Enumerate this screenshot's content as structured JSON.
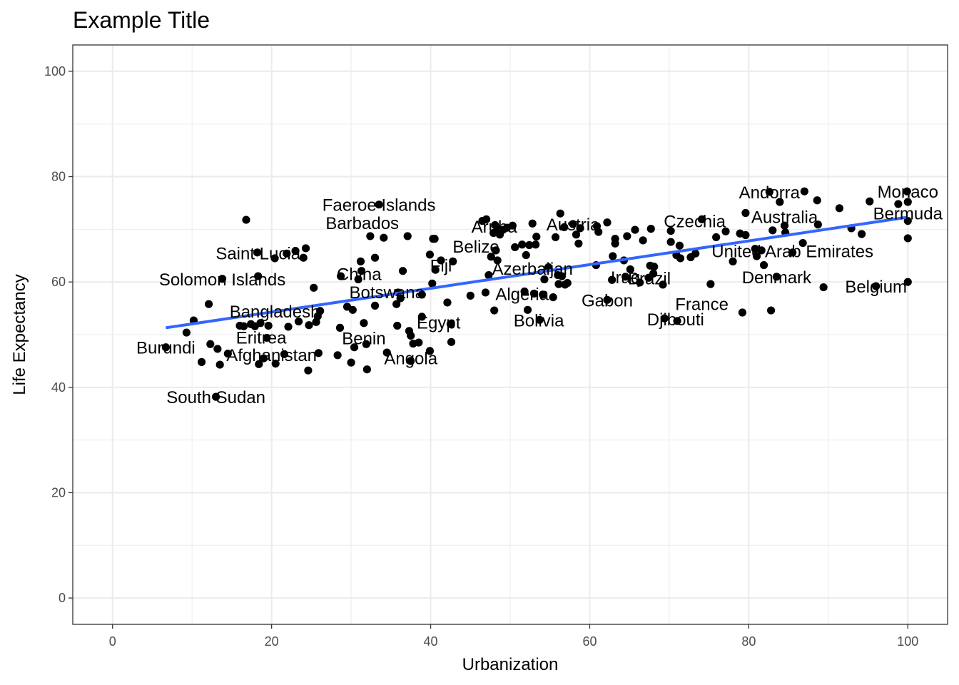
{
  "chart_data": {
    "type": "scatter",
    "title": "Example Title",
    "xlabel": "Urbanization",
    "ylabel": "Life Expectancy",
    "xlim": [
      -5,
      105
    ],
    "ylim": [
      -5,
      105
    ],
    "x_ticks": [
      "0",
      "20",
      "40",
      "60",
      "80",
      "100"
    ],
    "y_ticks": [
      "0",
      "20",
      "40",
      "60",
      "80",
      "100"
    ],
    "grid": true,
    "colors": {
      "points": "#000000",
      "trend": "#3366FF",
      "grid": "#ebebeb",
      "border": "#333333"
    },
    "trend_line": {
      "x": [
        6.7,
        100
      ],
      "y": [
        51.3,
        72.3
      ]
    },
    "labels": [
      {
        "text": "Faeroe Islands",
        "x": 33.5,
        "y": 74.7
      },
      {
        "text": "Barbados",
        "x": 31.4,
        "y": 71.3
      },
      {
        "text": "Aruba",
        "x": 48.0,
        "y": 70.6
      },
      {
        "text": "Austria",
        "x": 57.9,
        "y": 71.0
      },
      {
        "text": "Czechia",
        "x": 73.2,
        "y": 71.6
      },
      {
        "text": "Andorra",
        "x": 82.6,
        "y": 77.1
      },
      {
        "text": "Monaco",
        "x": 100.0,
        "y": 77.2
      },
      {
        "text": "Bermuda",
        "x": 100.0,
        "y": 73.1
      },
      {
        "text": "Australia",
        "x": 84.5,
        "y": 72.4
      },
      {
        "text": "Saint Lucia",
        "x": 18.3,
        "y": 65.5
      },
      {
        "text": "Belize",
        "x": 45.7,
        "y": 66.8
      },
      {
        "text": "United Arab Emirates",
        "x": 85.5,
        "y": 65.9
      },
      {
        "text": "Solomon Islands",
        "x": 13.8,
        "y": 60.6
      },
      {
        "text": "China",
        "x": 31.0,
        "y": 61.6
      },
      {
        "text": "Fiji",
        "x": 41.3,
        "y": 63.2
      },
      {
        "text": "Azerbaijan",
        "x": 52.8,
        "y": 62.6
      },
      {
        "text": "Iraq",
        "x": 64.5,
        "y": 61.0
      },
      {
        "text": "Brazil",
        "x": 67.5,
        "y": 60.8
      },
      {
        "text": "Denmark",
        "x": 83.5,
        "y": 61.0
      },
      {
        "text": "Belgium",
        "x": 96.0,
        "y": 59.2
      },
      {
        "text": "Botswana",
        "x": 34.5,
        "y": 58.1
      },
      {
        "text": "Algeria",
        "x": 51.5,
        "y": 57.8
      },
      {
        "text": "Gabon",
        "x": 62.2,
        "y": 56.6
      },
      {
        "text": "France",
        "x": 74.1,
        "y": 55.9
      },
      {
        "text": "Bangladesh",
        "x": 20.4,
        "y": 54.5
      },
      {
        "text": "Egypt",
        "x": 41.0,
        "y": 52.4
      },
      {
        "text": "Bolivia",
        "x": 53.6,
        "y": 52.8
      },
      {
        "text": "Djibouti",
        "x": 70.8,
        "y": 53.0
      },
      {
        "text": "Eritrea",
        "x": 18.7,
        "y": 49.5
      },
      {
        "text": "Benin",
        "x": 31.6,
        "y": 49.4
      },
      {
        "text": "Burundi",
        "x": 6.7,
        "y": 47.6
      },
      {
        "text": "Afghanistan",
        "x": 20.0,
        "y": 46.2
      },
      {
        "text": "Angola",
        "x": 37.5,
        "y": 45.6
      },
      {
        "text": "South Sudan",
        "x": 13.0,
        "y": 38.2
      }
    ],
    "points": [
      [
        6.7,
        47.6
      ],
      [
        9.3,
        50.4
      ],
      [
        10.2,
        52.7
      ],
      [
        11.2,
        44.8
      ],
      [
        12.1,
        55.8
      ],
      [
        12.3,
        48.2
      ],
      [
        13.0,
        38.2
      ],
      [
        13.2,
        47.3
      ],
      [
        13.5,
        44.3
      ],
      [
        13.8,
        60.6
      ],
      [
        14.5,
        46.4
      ],
      [
        16.0,
        51.7
      ],
      [
        16.5,
        51.6
      ],
      [
        16.8,
        71.8
      ],
      [
        17.4,
        52.0
      ],
      [
        17.9,
        51.6
      ],
      [
        18.2,
        65.6
      ],
      [
        18.3,
        61.1
      ],
      [
        18.4,
        44.4
      ],
      [
        18.6,
        52.2
      ],
      [
        19.0,
        45.5
      ],
      [
        19.4,
        49.4
      ],
      [
        19.6,
        51.7
      ],
      [
        20.4,
        64.5
      ],
      [
        20.5,
        44.5
      ],
      [
        21.6,
        46.3
      ],
      [
        21.9,
        65.4
      ],
      [
        22.1,
        51.5
      ],
      [
        23.0,
        65.9
      ],
      [
        23.4,
        52.5
      ],
      [
        24.0,
        64.6
      ],
      [
        24.3,
        66.4
      ],
      [
        24.7,
        51.8
      ],
      [
        24.6,
        43.2
      ],
      [
        25.3,
        58.9
      ],
      [
        25.6,
        52.4
      ],
      [
        25.8,
        53.5
      ],
      [
        25.9,
        46.5
      ],
      [
        26.1,
        54.5
      ],
      [
        28.3,
        46.1
      ],
      [
        28.7,
        61.1
      ],
      [
        28.6,
        51.3
      ],
      [
        29.5,
        55.3
      ],
      [
        30.0,
        44.7
      ],
      [
        30.4,
        47.6
      ],
      [
        30.2,
        54.7
      ],
      [
        30.9,
        60.5
      ],
      [
        31.3,
        62.1
      ],
      [
        31.2,
        63.9
      ],
      [
        31.6,
        52.2
      ],
      [
        31.9,
        48.2
      ],
      [
        32.0,
        43.4
      ],
      [
        32.4,
        68.7
      ],
      [
        33.0,
        55.5
      ],
      [
        33.0,
        64.6
      ],
      [
        33.5,
        74.7
      ],
      [
        34.1,
        68.4
      ],
      [
        34.5,
        46.6
      ],
      [
        35.7,
        55.8
      ],
      [
        35.8,
        51.7
      ],
      [
        35.9,
        58.0
      ],
      [
        36.2,
        56.9
      ],
      [
        36.5,
        62.1
      ],
      [
        37.1,
        68.7
      ],
      [
        37.3,
        50.7
      ],
      [
        37.5,
        45.0
      ],
      [
        37.5,
        49.8
      ],
      [
        37.8,
        48.3
      ],
      [
        38.5,
        48.5
      ],
      [
        38.9,
        53.4
      ],
      [
        38.9,
        57.6
      ],
      [
        39.9,
        46.9
      ],
      [
        39.9,
        65.2
      ],
      [
        40.2,
        59.7
      ],
      [
        40.3,
        68.2
      ],
      [
        40.5,
        68.2
      ],
      [
        40.6,
        62.3
      ],
      [
        41.3,
        64.1
      ],
      [
        42.1,
        56.1
      ],
      [
        42.6,
        48.6
      ],
      [
        42.5,
        52.0
      ],
      [
        42.8,
        63.9
      ],
      [
        45.0,
        57.4
      ],
      [
        46.5,
        71.6
      ],
      [
        47.0,
        71.9
      ],
      [
        46.9,
        58.0
      ],
      [
        47.3,
        61.3
      ],
      [
        47.6,
        64.8
      ],
      [
        47.9,
        69.3
      ],
      [
        48.1,
        70.8
      ],
      [
        48.2,
        66.0
      ],
      [
        48.0,
        54.6
      ],
      [
        48.7,
        69.0
      ],
      [
        48.4,
        70.0
      ],
      [
        48.4,
        64.1
      ],
      [
        49.1,
        69.9
      ],
      [
        49.6,
        70.3
      ],
      [
        50.3,
        70.7
      ],
      [
        50.6,
        66.6
      ],
      [
        51.5,
        67.1
      ],
      [
        51.8,
        58.2
      ],
      [
        52.0,
        65.1
      ],
      [
        52.4,
        67.0
      ],
      [
        52.2,
        54.7
      ],
      [
        52.8,
        71.1
      ],
      [
        53.0,
        57.8
      ],
      [
        53.2,
        67.1
      ],
      [
        53.3,
        68.6
      ],
      [
        53.7,
        52.8
      ],
      [
        54.1,
        57.6
      ],
      [
        54.3,
        60.5
      ],
      [
        54.8,
        62.8
      ],
      [
        55.4,
        57.1
      ],
      [
        55.7,
        68.5
      ],
      [
        56.0,
        61.3
      ],
      [
        56.1,
        59.6
      ],
      [
        56.3,
        73.0
      ],
      [
        56.5,
        61.1
      ],
      [
        56.8,
        70.4
      ],
      [
        56.9,
        59.5
      ],
      [
        57.2,
        59.8
      ],
      [
        57.9,
        71.0
      ],
      [
        58.3,
        69.0
      ],
      [
        58.6,
        67.3
      ],
      [
        58.8,
        70.2
      ],
      [
        60.8,
        63.2
      ],
      [
        60.9,
        70.6
      ],
      [
        61.1,
        69.5
      ],
      [
        62.2,
        56.6
      ],
      [
        62.2,
        71.3
      ],
      [
        62.8,
        60.4
      ],
      [
        62.9,
        64.9
      ],
      [
        63.2,
        68.2
      ],
      [
        63.2,
        67.3
      ],
      [
        64.3,
        64.1
      ],
      [
        64.5,
        61.0
      ],
      [
        64.7,
        68.7
      ],
      [
        65.1,
        62.4
      ],
      [
        65.7,
        69.9
      ],
      [
        66.3,
        59.9
      ],
      [
        66.7,
        67.9
      ],
      [
        67.4,
        60.8
      ],
      [
        67.6,
        63.1
      ],
      [
        67.7,
        70.1
      ],
      [
        68.1,
        62.9
      ],
      [
        68.0,
        61.6
      ],
      [
        69.2,
        59.5
      ],
      [
        69.4,
        53.1
      ],
      [
        70.2,
        67.6
      ],
      [
        70.2,
        69.7
      ],
      [
        70.9,
        65.1
      ],
      [
        71.0,
        52.6
      ],
      [
        71.4,
        64.5
      ],
      [
        71.3,
        66.9
      ],
      [
        72.7,
        64.7
      ],
      [
        73.3,
        65.4
      ],
      [
        74.1,
        71.9
      ],
      [
        75.2,
        59.6
      ],
      [
        75.9,
        68.5
      ],
      [
        77.1,
        69.6
      ],
      [
        78.0,
        63.9
      ],
      [
        78.9,
        69.2
      ],
      [
        79.2,
        54.2
      ],
      [
        79.6,
        68.9
      ],
      [
        79.6,
        73.1
      ],
      [
        80.8,
        66.3
      ],
      [
        81.0,
        64.9
      ],
      [
        81.6,
        66.0
      ],
      [
        81.9,
        63.2
      ],
      [
        82.6,
        77.1
      ],
      [
        82.8,
        54.6
      ],
      [
        83.0,
        69.8
      ],
      [
        83.5,
        61.0
      ],
      [
        83.9,
        75.2
      ],
      [
        84.5,
        70.7
      ],
      [
        84.6,
        69.4
      ],
      [
        85.5,
        65.6
      ],
      [
        86.8,
        67.4
      ],
      [
        87.0,
        77.2
      ],
      [
        88.6,
        75.5
      ],
      [
        88.7,
        70.9
      ],
      [
        89.4,
        59.0
      ],
      [
        91.4,
        74.0
      ],
      [
        92.9,
        70.2
      ],
      [
        94.2,
        69.1
      ],
      [
        95.2,
        75.3
      ],
      [
        96.0,
        59.2
      ],
      [
        98.8,
        74.8
      ],
      [
        99.9,
        77.2
      ],
      [
        100,
        75.2
      ],
      [
        100,
        71.6
      ],
      [
        100,
        68.3
      ],
      [
        100,
        60.0
      ]
    ]
  }
}
